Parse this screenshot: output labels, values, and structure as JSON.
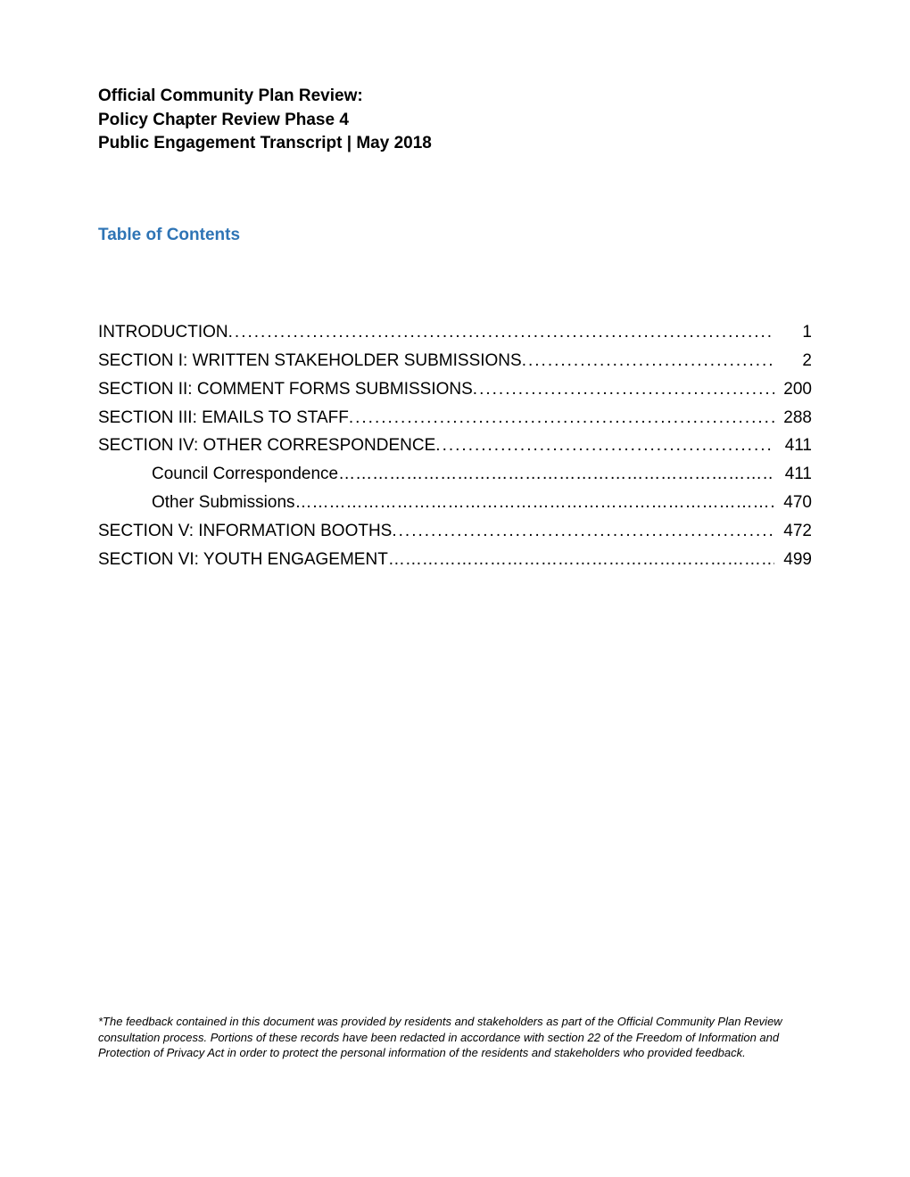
{
  "title": {
    "line1": "Official Community Plan Review:",
    "line2": "Policy Chapter Review Phase 4",
    "line3": "Public Engagement Transcript | May 2018"
  },
  "toc": {
    "heading": "Table of Contents",
    "entries": [
      {
        "label": "INTRODUCTION",
        "page": "1",
        "indent": false,
        "dotStyle": "fine"
      },
      {
        "label": "SECTION I: WRITTEN STAKEHOLDER SUBMISSIONS",
        "page": "2",
        "indent": false,
        "dotStyle": "fine"
      },
      {
        "label": "SECTION II: COMMENT FORMS SUBMISSIONS",
        "page": "200",
        "indent": false,
        "dotStyle": "fine"
      },
      {
        "label": "SECTION III: EMAILS TO STAFF",
        "page": "288",
        "indent": false,
        "dotStyle": "fine"
      },
      {
        "label": "SECTION IV: OTHER CORRESPONDENCE",
        "page": "411",
        "indent": false,
        "dotStyle": "fine"
      },
      {
        "label": "Council Correspondence",
        "page": "411",
        "indent": true,
        "dotStyle": "wide"
      },
      {
        "label": "Other Submissions",
        "page": "470",
        "indent": true,
        "dotStyle": "wide"
      },
      {
        "label": "SECTION V: INFORMATION BOOTHS",
        "page": "472",
        "indent": false,
        "dotStyle": "fine"
      },
      {
        "label": "SECTION VI: YOUTH ENGAGEMENT",
        "page": "499",
        "indent": false,
        "dotStyle": "wide"
      }
    ]
  },
  "footnote": "*The feedback contained in this document was provided by residents and stakeholders as part of the Official Community Plan Review consultation process. Portions of these records have been redacted in accordance with section 22 of the Freedom of Information and Protection of Privacy Act in order to protect the personal information of the residents and stakeholders who provided feedback.",
  "colors": {
    "text": "#000000",
    "heading_accent": "#2e74b5",
    "background": "#ffffff"
  },
  "typography": {
    "title_fontsize": 19,
    "title_weight": "bold",
    "toc_heading_fontsize": 19,
    "toc_heading_weight": "bold",
    "toc_body_fontsize": 19,
    "footnote_fontsize": 13,
    "footnote_style": "italic",
    "font_family": "Arial"
  }
}
